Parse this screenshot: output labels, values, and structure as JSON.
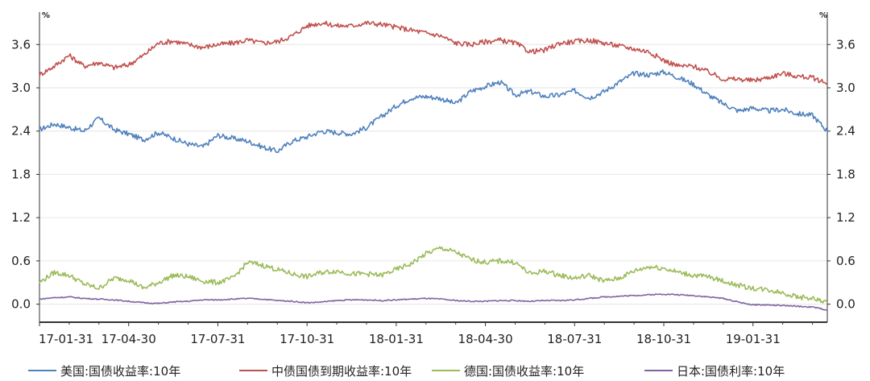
{
  "chart_data": {
    "type": "line",
    "title": "",
    "ylabel_left": "%",
    "ylabel_right": "%",
    "ylim": [
      -0.25,
      4.05
    ],
    "yticks": [
      0.0,
      0.6,
      1.2,
      1.8,
      2.4,
      3.0,
      3.6
    ],
    "ytick_labels": [
      "0.0",
      "0.6",
      "1.2",
      "1.8",
      "2.4",
      "3.0",
      "3.6"
    ],
    "xticks": [
      "17-01-31",
      "17-04-30",
      "17-07-31",
      "17-10-31",
      "18-01-31",
      "18-04-30",
      "18-07-31",
      "18-10-31",
      "19-01-31"
    ],
    "x_range_months": [
      0,
      26.5
    ],
    "grid": "horizontal",
    "legend_position": "bottom",
    "series": [
      {
        "name": "美国:国债收益率:10年",
        "color": "#4f81bd",
        "x": [
          0,
          0.5,
          1,
          1.5,
          2,
          2.5,
          3,
          3.5,
          4,
          4.5,
          5,
          5.5,
          6,
          6.5,
          7,
          7.5,
          8,
          8.5,
          9,
          9.5,
          10,
          10.5,
          11,
          11.5,
          12,
          12.5,
          13,
          13.5,
          14,
          14.5,
          15,
          15.5,
          16,
          16.5,
          17,
          17.5,
          18,
          18.5,
          19,
          19.5,
          20,
          20.5,
          21,
          21.5,
          22,
          22.5,
          23,
          23.5,
          24,
          24.5,
          25,
          25.5,
          26,
          26.5
        ],
        "y": [
          2.42,
          2.5,
          2.45,
          2.4,
          2.58,
          2.42,
          2.36,
          2.28,
          2.38,
          2.3,
          2.22,
          2.18,
          2.34,
          2.3,
          2.26,
          2.18,
          2.12,
          2.26,
          2.32,
          2.4,
          2.38,
          2.36,
          2.45,
          2.6,
          2.75,
          2.86,
          2.88,
          2.85,
          2.78,
          2.95,
          3.02,
          3.08,
          2.9,
          2.95,
          2.88,
          2.9,
          2.96,
          2.86,
          2.95,
          3.08,
          3.2,
          3.18,
          3.22,
          3.14,
          3.05,
          2.9,
          2.78,
          2.68,
          2.72,
          2.68,
          2.7,
          2.64,
          2.62,
          2.4
        ]
      },
      {
        "name": "中债国债到期收益率:10年",
        "color": "#c0504d",
        "x": [
          0,
          0.5,
          1,
          1.5,
          2,
          2.5,
          3,
          3.5,
          4,
          4.5,
          5,
          5.5,
          6,
          6.5,
          7,
          7.5,
          8,
          8.5,
          9,
          9.5,
          10,
          10.5,
          11,
          11.5,
          12,
          12.5,
          13,
          13.5,
          14,
          14.5,
          15,
          15.5,
          16,
          16.5,
          17,
          17.5,
          18,
          18.5,
          19,
          19.5,
          20,
          20.5,
          21,
          21.5,
          22,
          22.5,
          23,
          23.5,
          24,
          24.5,
          25,
          25.5,
          26,
          26.5
        ],
        "y": [
          3.18,
          3.3,
          3.45,
          3.3,
          3.35,
          3.28,
          3.32,
          3.45,
          3.62,
          3.65,
          3.6,
          3.56,
          3.6,
          3.62,
          3.66,
          3.62,
          3.64,
          3.72,
          3.86,
          3.9,
          3.86,
          3.86,
          3.9,
          3.88,
          3.84,
          3.8,
          3.76,
          3.72,
          3.62,
          3.6,
          3.64,
          3.66,
          3.62,
          3.5,
          3.52,
          3.62,
          3.64,
          3.66,
          3.62,
          3.58,
          3.54,
          3.5,
          3.38,
          3.3,
          3.3,
          3.22,
          3.12,
          3.12,
          3.1,
          3.14,
          3.2,
          3.16,
          3.14,
          3.06
        ]
      },
      {
        "name": "德国:国债收益率:10年",
        "color": "#9bbb59",
        "x": [
          0,
          0.5,
          1,
          1.5,
          2,
          2.5,
          3,
          3.5,
          4,
          4.5,
          5,
          5.5,
          6,
          6.5,
          7,
          7.5,
          8,
          8.5,
          9,
          9.5,
          10,
          10.5,
          11,
          11.5,
          12,
          12.5,
          13,
          13.5,
          14,
          14.5,
          15,
          15.5,
          16,
          16.5,
          17,
          17.5,
          18,
          18.5,
          19,
          19.5,
          20,
          20.5,
          21,
          21.5,
          22,
          22.5,
          23,
          23.5,
          24,
          24.5,
          25,
          25.5,
          26,
          26.5
        ],
        "y": [
          0.3,
          0.44,
          0.4,
          0.28,
          0.22,
          0.36,
          0.34,
          0.22,
          0.3,
          0.4,
          0.38,
          0.32,
          0.3,
          0.36,
          0.58,
          0.54,
          0.48,
          0.42,
          0.38,
          0.44,
          0.46,
          0.42,
          0.42,
          0.4,
          0.48,
          0.56,
          0.7,
          0.78,
          0.72,
          0.62,
          0.58,
          0.6,
          0.58,
          0.42,
          0.46,
          0.4,
          0.36,
          0.4,
          0.32,
          0.36,
          0.46,
          0.52,
          0.5,
          0.44,
          0.4,
          0.38,
          0.32,
          0.26,
          0.22,
          0.2,
          0.16,
          0.1,
          0.08,
          0.02
        ]
      },
      {
        "name": "日本:国债利率:10年",
        "color": "#8064a2",
        "x": [
          0,
          0.5,
          1,
          1.5,
          2,
          2.5,
          3,
          3.5,
          4,
          4.5,
          5,
          5.5,
          6,
          6.5,
          7,
          7.5,
          8,
          8.5,
          9,
          9.5,
          10,
          10.5,
          11,
          11.5,
          12,
          12.5,
          13,
          13.5,
          14,
          14.5,
          15,
          15.5,
          16,
          16.5,
          17,
          17.5,
          18,
          18.5,
          19,
          19.5,
          20,
          20.5,
          21,
          21.5,
          22,
          22.5,
          23,
          23.5,
          24,
          24.5,
          25,
          25.5,
          26,
          26.5
        ],
        "y": [
          0.07,
          0.09,
          0.1,
          0.08,
          0.07,
          0.06,
          0.04,
          0.02,
          0.01,
          0.03,
          0.04,
          0.06,
          0.06,
          0.07,
          0.08,
          0.07,
          0.05,
          0.04,
          0.02,
          0.03,
          0.05,
          0.06,
          0.06,
          0.05,
          0.06,
          0.07,
          0.08,
          0.07,
          0.05,
          0.04,
          0.04,
          0.05,
          0.05,
          0.04,
          0.05,
          0.05,
          0.06,
          0.08,
          0.1,
          0.11,
          0.12,
          0.13,
          0.14,
          0.13,
          0.12,
          0.1,
          0.08,
          0.03,
          -0.01,
          -0.01,
          -0.02,
          -0.03,
          -0.04,
          -0.08
        ]
      }
    ]
  }
}
